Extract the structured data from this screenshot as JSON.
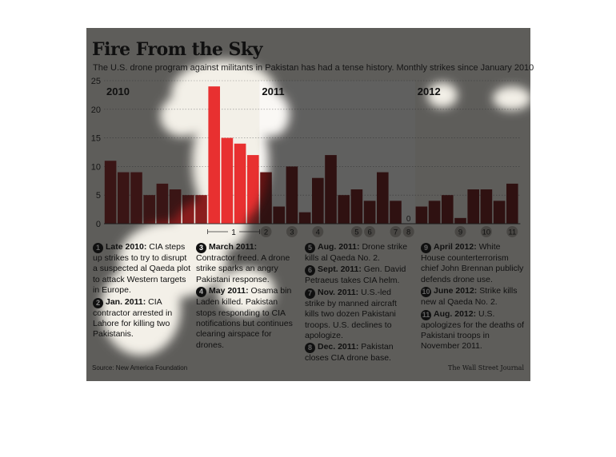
{
  "header": {
    "title": "Fire From the Sky",
    "subtitle": "The U.S. drone program against militants in Pakistan has had a tense history. Monthly strikes since January 2010"
  },
  "chart_data": {
    "type": "bar",
    "title": "Fire From the Sky",
    "subtitle": "The U.S. drone program against militants in Pakistan has had a tense history. Monthly strikes since January 2010",
    "ylim": [
      0,
      25
    ],
    "yticks": [
      "0",
      "5",
      "10",
      "15",
      "20",
      "25"
    ],
    "grid": true,
    "year_labels": [
      "2010",
      "2011",
      "2012"
    ],
    "values": [
      11,
      9,
      9,
      5,
      7,
      6,
      5,
      5,
      24,
      15,
      14,
      12,
      9,
      3,
      10,
      2,
      8,
      12,
      5,
      6,
      4,
      9,
      4,
      0,
      3,
      4,
      5,
      1,
      6,
      6,
      4,
      7
    ],
    "highlight_range": [
      8,
      11
    ],
    "zero_label": "0",
    "bracket_label": "1",
    "marker_labels": [
      {
        "label": "2",
        "index": 12
      },
      {
        "label": "3",
        "index": 14
      },
      {
        "label": "4",
        "index": 16
      },
      {
        "label": "5",
        "index": 19
      },
      {
        "label": "6",
        "index": 20
      },
      {
        "label": "7",
        "index": 22
      },
      {
        "label": "8",
        "index": 23
      },
      {
        "label": "9",
        "index": 27
      },
      {
        "label": "10",
        "index": 29
      },
      {
        "label": "11",
        "index": 31
      }
    ]
  },
  "colors": {
    "background": "#f3f0e8",
    "bar_2010": "#8b1e1e",
    "bar_2011": "#6b1414",
    "bar_2012": "#6b1414",
    "bar_highlight": "#e83030",
    "band_2011": "#ffffff"
  },
  "notes": {
    "col1": [
      {
        "num": "1",
        "date": "Late 2010:",
        "text": "CIA steps up strikes to try to disrupt a suspected al Qaeda plot to attack Western targets in Europe."
      },
      {
        "num": "2",
        "date": "Jan. 2011:",
        "text": "CIA contractor arrested in Lahore for killing two Pakistanis."
      }
    ],
    "col2": [
      {
        "num": "3",
        "date": "March 2011:",
        "text": "Contractor freed. A drone strike sparks an angry Pakistani response."
      },
      {
        "num": "4",
        "date": "May 2011:",
        "text": "Osama bin Laden killed. Pakistan stops responding to CIA notifications but continues clearing airspace for drones."
      }
    ],
    "col3": [
      {
        "num": "5",
        "date": "Aug. 2011:",
        "text": "Drone strike kills al Qaeda No. 2."
      },
      {
        "num": "6",
        "date": "Sept. 2011:",
        "text": "Gen. David Petraeus takes CIA helm."
      },
      {
        "num": "7",
        "date": "Nov. 2011:",
        "text": "U.S.-led strike by manned aircraft kills two dozen Pakistani troops. U.S. declines to apologize."
      },
      {
        "num": "8",
        "date": "Dec. 2011:",
        "text": "Pakistan closes CIA drone base."
      }
    ],
    "col4": [
      {
        "num": "9",
        "date": "April 2012:",
        "text": "White House counterterrorism chief John Brennan publicly defends drone use."
      },
      {
        "num": "10",
        "date": "June 2012:",
        "text": "Strike kills new al Qaeda No. 2."
      },
      {
        "num": "11",
        "date": "Aug. 2012:",
        "text": "U.S. apologizes for the deaths of Pakistani troops in November 2011."
      }
    ]
  },
  "footer": {
    "source": "Source: New America Foundation",
    "credit": "The Wall Street Journal"
  }
}
